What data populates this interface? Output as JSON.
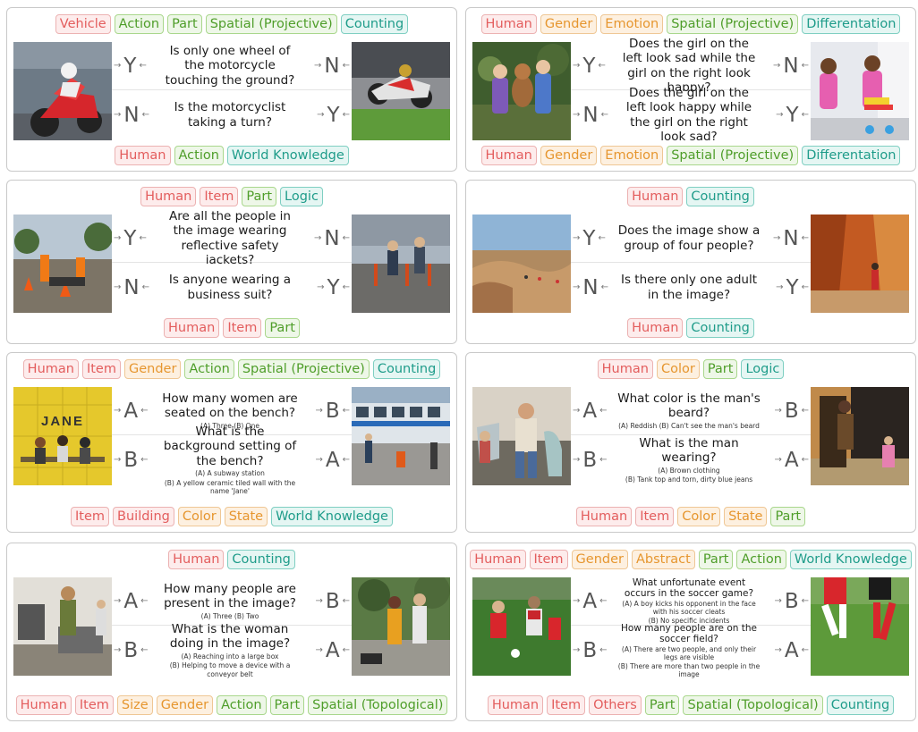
{
  "colors": {
    "red": "#e35d5d",
    "orange": "#e6962f",
    "green": "#4f9e2a",
    "teal": "#1f9c8a"
  },
  "panels": [
    {
      "top_tags": [
        {
          "t": "Vehicle",
          "c": "red"
        },
        {
          "t": "Action",
          "c": "green"
        },
        {
          "t": "Part",
          "c": "green"
        },
        {
          "t": "Spatial (Projective)",
          "c": "green"
        },
        {
          "t": "Counting",
          "c": "teal"
        }
      ],
      "bottom_tags": [
        {
          "t": "Human",
          "c": "red"
        },
        {
          "t": "Action",
          "c": "green"
        },
        {
          "t": "World Knowledge",
          "c": "teal"
        }
      ],
      "rows": [
        {
          "q": "Is only one wheel of the motorcycle touching the ground?",
          "left": "Y",
          "right": "N",
          "opts": ""
        },
        {
          "q": "Is the motorcyclist taking a turn?",
          "left": "N",
          "right": "Y",
          "opts": ""
        }
      ]
    },
    {
      "top_tags": [
        {
          "t": "Human",
          "c": "red"
        },
        {
          "t": "Gender",
          "c": "orange"
        },
        {
          "t": "Emotion",
          "c": "orange"
        },
        {
          "t": "Spatial (Projective)",
          "c": "green"
        },
        {
          "t": "Differentation",
          "c": "teal"
        }
      ],
      "bottom_tags": [
        {
          "t": "Human",
          "c": "red"
        },
        {
          "t": "Gender",
          "c": "orange"
        },
        {
          "t": "Emotion",
          "c": "orange"
        },
        {
          "t": "Spatial (Projective)",
          "c": "green"
        },
        {
          "t": "Differentation",
          "c": "teal"
        }
      ],
      "rows": [
        {
          "q": "Does the girl on the left look sad while the girl on the right look happy?",
          "left": "Y",
          "right": "N",
          "opts": ""
        },
        {
          "q": "Does the girl on the left look happy while the girl on the right look sad?",
          "left": "N",
          "right": "Y",
          "opts": ""
        }
      ]
    },
    {
      "top_tags": [
        {
          "t": "Human",
          "c": "red"
        },
        {
          "t": "Item",
          "c": "red"
        },
        {
          "t": "Part",
          "c": "green"
        },
        {
          "t": "Logic",
          "c": "teal"
        }
      ],
      "bottom_tags": [
        {
          "t": "Human",
          "c": "red"
        },
        {
          "t": "Item",
          "c": "red"
        },
        {
          "t": "Part",
          "c": "green"
        }
      ],
      "rows": [
        {
          "q": "Are all the people in the image wearing reflective safety jackets?",
          "left": "Y",
          "right": "N",
          "opts": ""
        },
        {
          "q": "Is anyone wearing a business suit?",
          "left": "N",
          "right": "Y",
          "opts": ""
        }
      ]
    },
    {
      "top_tags": [
        {
          "t": "Human",
          "c": "red"
        },
        {
          "t": "Counting",
          "c": "teal"
        }
      ],
      "bottom_tags": [
        {
          "t": "Human",
          "c": "red"
        },
        {
          "t": "Counting",
          "c": "teal"
        }
      ],
      "rows": [
        {
          "q": "Does the image show a group of four people?",
          "left": "Y",
          "right": "N",
          "opts": ""
        },
        {
          "q": "Is there only one adult in the image?",
          "left": "N",
          "right": "Y",
          "opts": ""
        }
      ]
    },
    {
      "top_tags": [
        {
          "t": "Human",
          "c": "red"
        },
        {
          "t": "Item",
          "c": "red"
        },
        {
          "t": "Gender",
          "c": "orange"
        },
        {
          "t": "Action",
          "c": "green"
        },
        {
          "t": "Spatial (Projective)",
          "c": "green"
        },
        {
          "t": "Counting",
          "c": "teal"
        }
      ],
      "bottom_tags": [
        {
          "t": "Item",
          "c": "red"
        },
        {
          "t": "Building",
          "c": "red"
        },
        {
          "t": "Color",
          "c": "orange"
        },
        {
          "t": "State",
          "c": "orange"
        },
        {
          "t": "World Knowledge",
          "c": "teal"
        }
      ],
      "rows": [
        {
          "q": "How many women are seated on the bench?",
          "left": "A",
          "right": "B",
          "opts": "(A) Three  (B) One"
        },
        {
          "q": "What is the background setting of the bench?",
          "left": "B",
          "right": "A",
          "opts": "(A) A subway station\n(B) A yellow ceramic tiled wall with the name 'Jane'"
        }
      ],
      "sign": "JANE"
    },
    {
      "top_tags": [
        {
          "t": "Human",
          "c": "red"
        },
        {
          "t": "Color",
          "c": "orange"
        },
        {
          "t": "Part",
          "c": "green"
        },
        {
          "t": "Logic",
          "c": "teal"
        }
      ],
      "bottom_tags": [
        {
          "t": "Human",
          "c": "red"
        },
        {
          "t": "Item",
          "c": "red"
        },
        {
          "t": "Color",
          "c": "orange"
        },
        {
          "t": "State",
          "c": "orange"
        },
        {
          "t": "Part",
          "c": "green"
        }
      ],
      "rows": [
        {
          "q": "What color is the man's beard?",
          "left": "A",
          "right": "B",
          "opts": "(A) Reddish  (B) Can't see the man's beard"
        },
        {
          "q": "What is the man wearing?",
          "left": "B",
          "right": "A",
          "opts": "(A) Brown clothing\n(B) Tank top and torn, dirty blue jeans"
        }
      ]
    },
    {
      "top_tags": [
        {
          "t": "Human",
          "c": "red"
        },
        {
          "t": "Counting",
          "c": "teal"
        }
      ],
      "bottom_tags": [
        {
          "t": "Human",
          "c": "red"
        },
        {
          "t": "Item",
          "c": "red"
        },
        {
          "t": "Size",
          "c": "orange"
        },
        {
          "t": "Gender",
          "c": "orange"
        },
        {
          "t": "Action",
          "c": "green"
        },
        {
          "t": "Part",
          "c": "green"
        },
        {
          "t": "Spatial (Topological)",
          "c": "green"
        }
      ],
      "rows": [
        {
          "q": "How many people are present in the image?",
          "left": "A",
          "right": "B",
          "opts": "(A) Three  (B) Two"
        },
        {
          "q": "What is the woman doing in the image?",
          "left": "B",
          "right": "A",
          "opts": "(A) Reaching into a large box\n(B) Helping to move a device with a conveyor belt"
        }
      ]
    },
    {
      "top_tags": [
        {
          "t": "Human",
          "c": "red"
        },
        {
          "t": "Item",
          "c": "red"
        },
        {
          "t": "Gender",
          "c": "orange"
        },
        {
          "t": "Abstract",
          "c": "orange"
        },
        {
          "t": "Part",
          "c": "green"
        },
        {
          "t": "Action",
          "c": "green"
        },
        {
          "t": "World Knowledge",
          "c": "teal"
        }
      ],
      "bottom_tags": [
        {
          "t": "Human",
          "c": "red"
        },
        {
          "t": "Item",
          "c": "red"
        },
        {
          "t": "Others",
          "c": "red"
        },
        {
          "t": "Part",
          "c": "green"
        },
        {
          "t": "Spatial (Topological)",
          "c": "green"
        },
        {
          "t": "Counting",
          "c": "teal"
        }
      ],
      "rows": [
        {
          "q": "What unfortunate event occurs in the soccer game?",
          "left": "A",
          "right": "B",
          "opts": "(A) A boy kicks his opponent in the face with his soccer cleats\n(B) No specific incidents",
          "small": true
        },
        {
          "q": "How many people are on the soccer field?",
          "left": "B",
          "right": "A",
          "opts": "(A) There are two people, and only their legs are visible\n(B) There are more than two people in the image",
          "small": true
        }
      ]
    }
  ]
}
